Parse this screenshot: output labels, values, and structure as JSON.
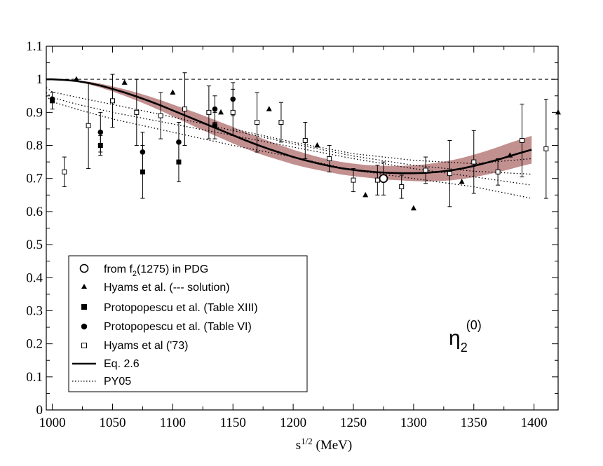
{
  "chart_data": {
    "type": "scatter",
    "xlim": [
      995,
      1420
    ],
    "ylim": [
      0,
      1.1
    ],
    "x_ticks": [
      1000,
      1050,
      1100,
      1150,
      1200,
      1250,
      1300,
      1350,
      1400
    ],
    "y_ticks": [
      0,
      0.1,
      0.2,
      0.3,
      0.4,
      0.5,
      0.6,
      0.7,
      0.8,
      0.9,
      1,
      1.1
    ],
    "x_tick_labels": [
      "1000",
      "1050",
      "1100",
      "1150",
      "1200",
      "1250",
      "1300",
      "1350",
      "1400"
    ],
    "y_tick_labels": [
      "0",
      "0.1",
      "0.2",
      "0.3",
      "0.4",
      "0.5",
      "0.6",
      "0.7",
      "0.8",
      "0.9",
      "1",
      "1.1"
    ],
    "xlabel": {
      "base": "s",
      "sup": "1/2",
      "unit": " (MeV)"
    },
    "annotation": {
      "base": "η",
      "sub": "2",
      "sup": "(0)"
    },
    "reference_line": {
      "y": 1.0,
      "style": "dashed"
    },
    "legend": {
      "position": "bottom-left",
      "entries": [
        {
          "label": "from f",
          "sub": "2",
          "tail": "(1275)  in PDG",
          "marker": "open-circle"
        },
        {
          "label": "Hyams et al. (--- solution)",
          "marker": "triangle"
        },
        {
          "label": "Protopopescu et al. (Table XIII)",
          "marker": "square"
        },
        {
          "label": "Protopopescu et al. (Table VI)",
          "marker": "circle"
        },
        {
          "label": "Hyams et al ('73)",
          "marker": "open-square"
        },
        {
          "label": "Eq. 2.6",
          "marker": "line-solid"
        },
        {
          "label": "PY05",
          "marker": "line-dotted"
        }
      ]
    },
    "series": [
      {
        "name": "from f2(1275) in PDG",
        "marker": "open-circle",
        "points": [
          {
            "x": 1275,
            "y": 0.7,
            "err": 0.05
          }
        ]
      },
      {
        "name": "Hyams et al. (--- solution)",
        "marker": "triangle",
        "points": [
          {
            "x": 1020,
            "y": 1.0
          },
          {
            "x": 1060,
            "y": 0.99
          },
          {
            "x": 1100,
            "y": 0.96
          },
          {
            "x": 1140,
            "y": 0.9
          },
          {
            "x": 1180,
            "y": 0.91
          },
          {
            "x": 1220,
            "y": 0.8
          },
          {
            "x": 1260,
            "y": 0.65
          },
          {
            "x": 1300,
            "y": 0.61
          },
          {
            "x": 1340,
            "y": 0.69
          },
          {
            "x": 1380,
            "y": 0.77
          },
          {
            "x": 1420,
            "y": 0.9
          }
        ]
      },
      {
        "name": "Protopopescu et al. (Table XIII)",
        "marker": "square",
        "points": [
          {
            "x": 1000,
            "y": 0.935,
            "err": 0.025
          },
          {
            "x": 1040,
            "y": 0.8,
            "err": 0.03
          },
          {
            "x": 1075,
            "y": 0.72,
            "err": 0.08
          },
          {
            "x": 1105,
            "y": 0.75,
            "err": 0.06
          },
          {
            "x": 1135,
            "y": 0.86,
            "err": 0.04
          }
        ]
      },
      {
        "name": "Protopopescu et al. (Table VI)",
        "marker": "circle",
        "points": [
          {
            "x": 1000,
            "y": 0.94
          },
          {
            "x": 1040,
            "y": 0.84,
            "err": 0.06
          },
          {
            "x": 1075,
            "y": 0.78,
            "err": 0.06
          },
          {
            "x": 1105,
            "y": 0.81,
            "err": 0.06
          },
          {
            "x": 1135,
            "y": 0.91,
            "err": 0.04
          },
          {
            "x": 1150,
            "y": 0.94,
            "err": 0.05
          }
        ]
      },
      {
        "name": "Hyams et al ('73)",
        "marker": "open-square",
        "points": [
          {
            "x": 1010,
            "y": 0.72,
            "err": 0.045
          },
          {
            "x": 1030,
            "y": 0.86,
            "err": 0.13
          },
          {
            "x": 1050,
            "y": 0.935,
            "err": 0.08
          },
          {
            "x": 1070,
            "y": 0.9,
            "err": 0.1
          },
          {
            "x": 1090,
            "y": 0.89,
            "err": 0.07
          },
          {
            "x": 1110,
            "y": 0.91,
            "err": 0.11
          },
          {
            "x": 1130,
            "y": 0.9,
            "err": 0.08
          },
          {
            "x": 1150,
            "y": 0.9,
            "err": 0.07
          },
          {
            "x": 1170,
            "y": 0.87,
            "err": 0.09
          },
          {
            "x": 1190,
            "y": 0.87,
            "err": 0.06
          },
          {
            "x": 1210,
            "y": 0.815,
            "err": 0.055
          },
          {
            "x": 1230,
            "y": 0.76,
            "err": 0.04
          },
          {
            "x": 1250,
            "y": 0.695,
            "err": 0.035
          },
          {
            "x": 1270,
            "y": 0.695,
            "err": 0.045
          },
          {
            "x": 1290,
            "y": 0.675,
            "err": 0.035
          },
          {
            "x": 1310,
            "y": 0.725,
            "err": 0.04
          },
          {
            "x": 1330,
            "y": 0.715,
            "err": 0.1
          },
          {
            "x": 1350,
            "y": 0.75,
            "err": 0.095
          },
          {
            "x": 1370,
            "y": 0.72,
            "err": 0.04
          },
          {
            "x": 1390,
            "y": 0.815,
            "err": 0.11
          },
          {
            "x": 1410,
            "y": 0.79,
            "err": 0.15
          }
        ]
      }
    ],
    "curves": [
      {
        "name": "Eq. 2.6",
        "style": "solid",
        "x": [
          995,
          1000,
          1010,
          1020,
          1030,
          1040,
          1050,
          1060,
          1070,
          1080,
          1090,
          1100,
          1110,
          1120,
          1130,
          1140,
          1150,
          1160,
          1170,
          1180,
          1190,
          1200,
          1210,
          1220,
          1230,
          1240,
          1250,
          1260,
          1270,
          1280,
          1290,
          1300,
          1310,
          1320,
          1330,
          1340,
          1350,
          1360,
          1370,
          1380,
          1390,
          1398
        ],
        "y": [
          1.0,
          1.0,
          0.998,
          0.995,
          0.989,
          0.981,
          0.971,
          0.96,
          0.948,
          0.935,
          0.921,
          0.906,
          0.891,
          0.876,
          0.861,
          0.846,
          0.831,
          0.816,
          0.802,
          0.789,
          0.777,
          0.765,
          0.755,
          0.746,
          0.738,
          0.731,
          0.726,
          0.722,
          0.719,
          0.717,
          0.716,
          0.716,
          0.717,
          0.72,
          0.724,
          0.73,
          0.738,
          0.747,
          0.757,
          0.768,
          0.779,
          0.787
        ]
      },
      {
        "name": "PY05",
        "style": "dotted",
        "x": [
          995,
          1000,
          1020,
          1050,
          1100,
          1150,
          1200,
          1250,
          1300,
          1350,
          1398
        ],
        "y": [
          0.96,
          0.945,
          0.925,
          0.9,
          0.865,
          0.83,
          0.795,
          0.76,
          0.73,
          0.705,
          0.68
        ]
      },
      {
        "name": "PY05",
        "style": "dotted",
        "x": [
          995,
          1000,
          1020,
          1050,
          1100,
          1150,
          1200,
          1250,
          1300,
          1350,
          1398
        ],
        "y": [
          0.975,
          0.962,
          0.946,
          0.924,
          0.886,
          0.845,
          0.805,
          0.768,
          0.74,
          0.722,
          0.713
        ]
      },
      {
        "name": "PY05",
        "style": "dotted",
        "x": [
          995,
          1000,
          1020,
          1050,
          1100,
          1150,
          1200,
          1250,
          1300,
          1350,
          1398
        ],
        "y": [
          0.95,
          0.932,
          0.91,
          0.88,
          0.84,
          0.8,
          0.765,
          0.725,
          0.7,
          0.675,
          0.64
        ]
      },
      {
        "name": "PY05",
        "style": "dotted",
        "x": [
          1150,
          1200,
          1250,
          1300,
          1350,
          1398
        ],
        "y": [
          0.85,
          0.81,
          0.775,
          0.755,
          0.745,
          0.76
        ]
      }
    ],
    "band": {
      "name": "Eq. 2.6 uncertainty",
      "color": "#b87c7c",
      "x": [
        995,
        1000,
        1010,
        1020,
        1030,
        1040,
        1050,
        1060,
        1070,
        1080,
        1090,
        1100,
        1110,
        1120,
        1130,
        1140,
        1150,
        1160,
        1170,
        1180,
        1190,
        1200,
        1210,
        1220,
        1230,
        1240,
        1250,
        1260,
        1270,
        1280,
        1290,
        1300,
        1310,
        1320,
        1330,
        1340,
        1350,
        1360,
        1370,
        1380,
        1390,
        1398
      ],
      "hw": [
        0.0,
        0.0,
        0.001,
        0.002,
        0.004,
        0.006,
        0.008,
        0.01,
        0.012,
        0.014,
        0.016,
        0.018,
        0.02,
        0.022,
        0.023,
        0.024,
        0.025,
        0.025,
        0.025,
        0.024,
        0.023,
        0.022,
        0.021,
        0.02,
        0.019,
        0.019,
        0.019,
        0.019,
        0.02,
        0.021,
        0.022,
        0.024,
        0.026,
        0.028,
        0.03,
        0.032,
        0.034,
        0.036,
        0.038,
        0.04,
        0.041,
        0.042
      ]
    }
  }
}
